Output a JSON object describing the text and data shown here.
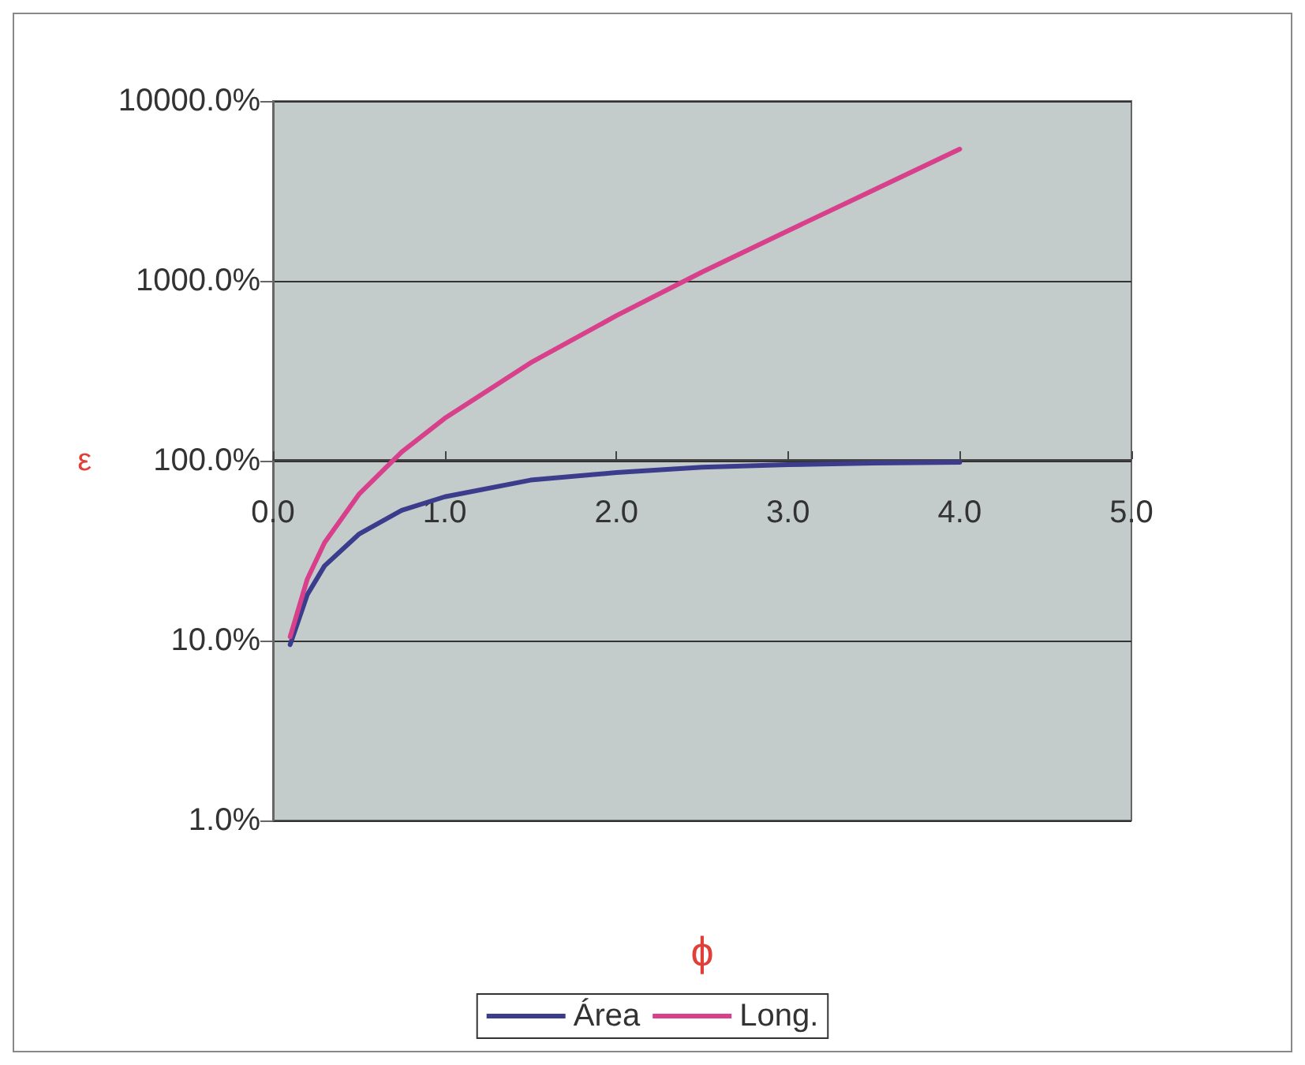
{
  "chart_data": {
    "type": "line",
    "xlabel": "ϕ",
    "ylabel": "ε",
    "log": "y",
    "grid": "y",
    "legend": "bottom",
    "marker": "none",
    "line_style": "solid",
    "xlim": [
      0,
      5
    ],
    "xticks": [
      {
        "value": 0,
        "label": "0.0"
      },
      {
        "value": 1,
        "label": "1.0"
      },
      {
        "value": 2,
        "label": "2.0"
      },
      {
        "value": 3,
        "label": "3.0"
      },
      {
        "value": 4,
        "label": "4.0"
      },
      {
        "value": 5,
        "label": "5.0"
      }
    ],
    "ylim": [
      1,
      10000
    ],
    "yticks": [
      {
        "value": 1,
        "label": "1.0%"
      },
      {
        "value": 10,
        "label": "10.0%"
      },
      {
        "value": 100,
        "label": "100.0%"
      },
      {
        "value": 1000,
        "label": "1000.0%"
      },
      {
        "value": 10000,
        "label": "10000.0%"
      }
    ],
    "x": [
      0.1,
      0.2,
      0.3,
      0.5,
      0.75,
      1.0,
      1.5,
      2.0,
      2.5,
      3.0,
      3.5,
      4.0
    ],
    "series": [
      {
        "name": "Área",
        "color": "#3c3c8c",
        "values": [
          9.5,
          18,
          26,
          39,
          53,
          63,
          78,
          86,
          92,
          95,
          97,
          98
        ]
      },
      {
        "name": "Long.",
        "color": "#d8408c",
        "values": [
          10.5,
          22,
          35,
          65,
          112,
          172,
          350,
          640,
          1120,
          1900,
          3200,
          5400
        ]
      }
    ]
  }
}
